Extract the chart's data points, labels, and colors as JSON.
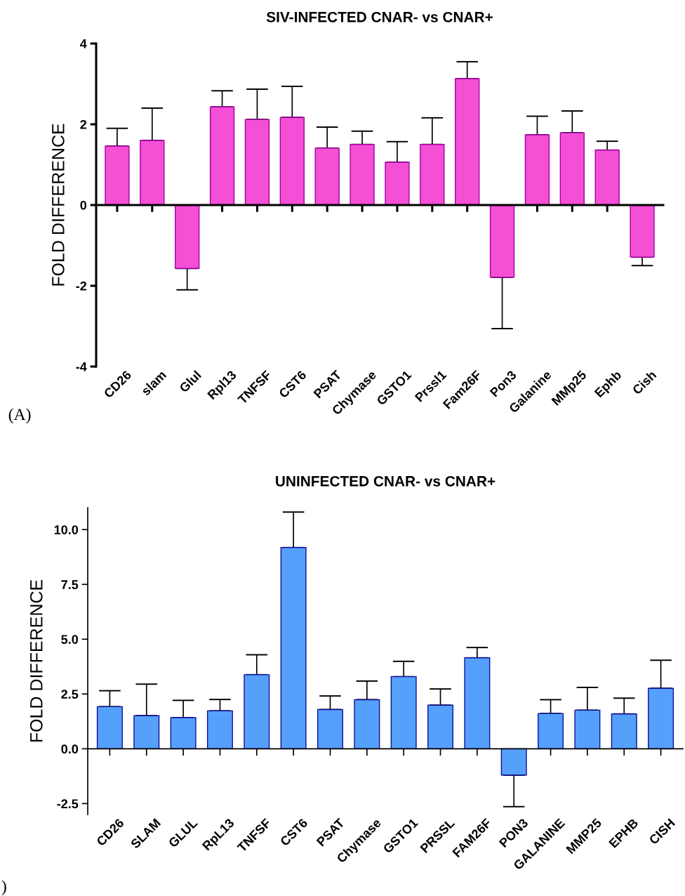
{
  "chart_data": [
    {
      "type": "bar",
      "title": "SIV-INFECTED CNAR- vs CNAR+",
      "ylabel": "FOLD DIFFERENCE",
      "annotations": [
        "(A)"
      ],
      "categories": [
        "CD26",
        "slam",
        "Glul",
        "Rpl13",
        "TNFSF",
        "CST6",
        "PSAT",
        "Chymase",
        "GSTO1",
        "Prssl1",
        "Fam26F",
        "Pon3",
        "Galanine",
        "MMp25",
        "Ephb",
        "Cish"
      ],
      "values": [
        1.46,
        1.6,
        -1.57,
        2.43,
        2.12,
        2.17,
        1.41,
        1.5,
        1.06,
        1.5,
        3.13,
        -1.79,
        1.74,
        1.79,
        1.36,
        -1.29
      ],
      "errors": [
        [
          1.46,
          1.9
        ],
        [
          1.6,
          2.4
        ],
        [
          -2.1,
          -1.57
        ],
        [
          2.43,
          2.83
        ],
        [
          2.12,
          2.87
        ],
        [
          2.17,
          2.94
        ],
        [
          1.41,
          1.93
        ],
        [
          1.5,
          1.83
        ],
        [
          1.06,
          1.57
        ],
        [
          1.5,
          2.16
        ],
        [
          3.13,
          3.55
        ],
        [
          -3.06,
          -1.79
        ],
        [
          1.74,
          2.2
        ],
        [
          1.79,
          2.33
        ],
        [
          1.36,
          1.58
        ],
        [
          -1.5,
          -1.29
        ]
      ],
      "color": "#f54fd6",
      "ylim": [
        -4,
        4
      ],
      "yticks": [
        -4,
        -2,
        0,
        2,
        4
      ]
    },
    {
      "type": "bar",
      "title": "UNINFECTED CNAR- vs CNAR+",
      "ylabel": "FOLD DIFFERENCE",
      "annotations": [
        ")"
      ],
      "categories": [
        "CD26",
        "SLAM",
        "GLUL",
        "RpL13",
        "TNFSF",
        "CST6",
        "PSAT",
        "Chymase",
        "GSTO1",
        "PRSSL",
        "FAM26F",
        "PON3",
        "GALANINE",
        "MMP25",
        "EPHB",
        "CISH"
      ],
      "values": [
        1.92,
        1.51,
        1.42,
        1.73,
        3.38,
        9.18,
        1.79,
        2.24,
        3.29,
        1.99,
        4.15,
        -1.2,
        1.61,
        1.76,
        1.59,
        2.76
      ],
      "errors": [
        [
          1.92,
          2.65
        ],
        [
          1.51,
          2.95
        ],
        [
          1.42,
          2.21
        ],
        [
          1.73,
          2.25
        ],
        [
          3.38,
          4.29
        ],
        [
          9.18,
          10.8
        ],
        [
          1.79,
          2.41
        ],
        [
          2.24,
          3.09
        ],
        [
          3.29,
          3.99
        ],
        [
          1.99,
          2.73
        ],
        [
          4.15,
          4.62
        ],
        [
          -2.64,
          -1.2
        ],
        [
          1.61,
          2.24
        ],
        [
          1.76,
          2.8
        ],
        [
          1.59,
          2.31
        ],
        [
          2.76,
          4.04
        ]
      ],
      "color": "#55a0fb",
      "ylim": [
        -3,
        11
      ],
      "yticks": [
        {
          "value": -2.5,
          "label": "-2.5"
        },
        {
          "value": 0,
          "label": "0.0"
        },
        {
          "value": 2.5,
          "label": "2.5"
        },
        {
          "value": 5,
          "label": "5.0"
        },
        {
          "value": 7.5,
          "label": "7.5"
        },
        {
          "value": 10,
          "label": "10.0"
        }
      ]
    }
  ]
}
